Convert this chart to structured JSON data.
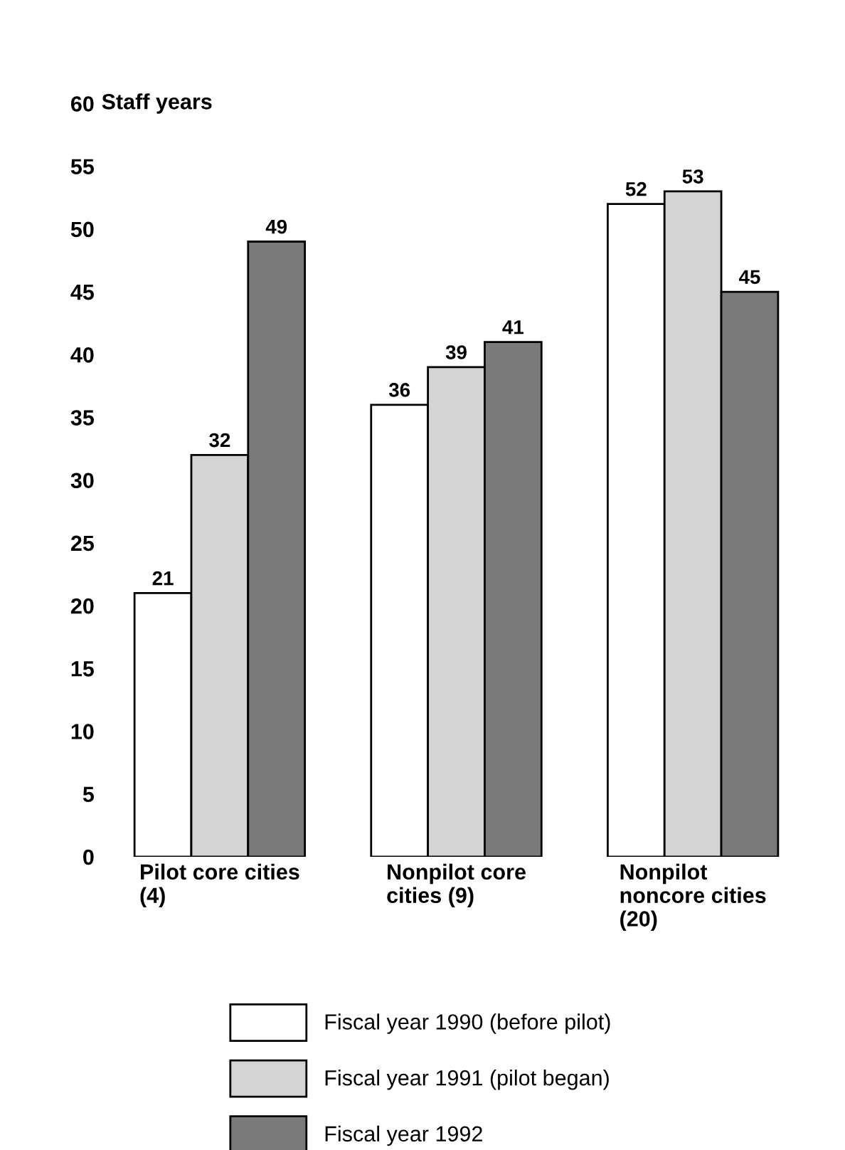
{
  "chart_data": {
    "type": "bar",
    "ylabel": "Staff years",
    "categories": [
      "Pilot core cities\n(4)",
      "Nonpilot core\ncities (9)",
      "Nonpilot\nnoncore cities\n(20)"
    ],
    "series": [
      {
        "name": "Fiscal year 1990 (before pilot)",
        "color": "#ffffff",
        "values": [
          21,
          36,
          52
        ]
      },
      {
        "name": "Fiscal year 1991 (pilot began)",
        "color": "#d4d4d4",
        "values": [
          32,
          39,
          53
        ]
      },
      {
        "name": "Fiscal year 1992",
        "color": "#7a7a7a",
        "values": [
          49,
          41,
          45
        ]
      }
    ],
    "ylim": [
      0,
      60
    ],
    "yticks": [
      0,
      5,
      10,
      15,
      20,
      25,
      30,
      35,
      40,
      45,
      50,
      55,
      60
    ],
    "data_labels": true,
    "grid": false,
    "legend": "bottom"
  }
}
